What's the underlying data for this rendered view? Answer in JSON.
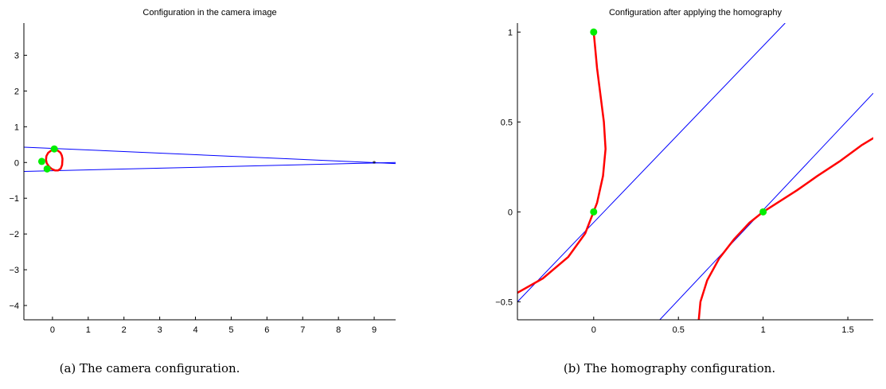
{
  "chart_data": [
    {
      "type": "line",
      "title": "Configuration in the camera image",
      "caption": "(a) The camera configuration.",
      "xlim": [
        -0.8,
        9.6
      ],
      "ylim": [
        -4.4,
        3.9
      ],
      "xticks": [
        0,
        1,
        2,
        3,
        4,
        5,
        6,
        7,
        8,
        9
      ],
      "yticks": [
        -4,
        -3,
        -2,
        -1,
        0,
        1,
        2,
        3
      ],
      "grid": false,
      "series": [
        {
          "kind": "line",
          "color": "#0000ff",
          "x": [
            -0.8,
            9.6
          ],
          "y": [
            0.43,
            -0.03
          ]
        },
        {
          "kind": "line",
          "color": "#0000ff",
          "x": [
            -0.8,
            9.6
          ],
          "y": [
            -0.25,
            0.0
          ]
        },
        {
          "kind": "conic",
          "color": "#ff0000",
          "x": [
            0.28,
            0.26,
            0.22,
            0.15,
            0.06,
            -0.04,
            -0.12,
            -0.17,
            -0.18,
            -0.16,
            -0.1,
            -0.02,
            0.07,
            0.16,
            0.23,
            0.27,
            0.28
          ],
          "y": [
            0.1,
            0.2,
            0.28,
            0.33,
            0.35,
            0.33,
            0.27,
            0.18,
            0.08,
            -0.02,
            -0.11,
            -0.18,
            -0.22,
            -0.22,
            -0.17,
            -0.07,
            0.1
          ]
        },
        {
          "kind": "points",
          "color": "#00ee00",
          "x": [
            0.05,
            -0.3,
            -0.15
          ],
          "y": [
            0.38,
            0.03,
            -0.18
          ]
        },
        {
          "kind": "marker",
          "color": "#000000",
          "symbol": "*",
          "x": [
            9.0
          ],
          "y": [
            0.0
          ]
        }
      ]
    },
    {
      "type": "line",
      "title": "Configuration after applying the homography",
      "caption": "(b) The homography configuration.",
      "xlim": [
        -0.45,
        1.65
      ],
      "ylim": [
        -0.6,
        1.05
      ],
      "xticks": [
        0,
        0.5,
        1,
        1.5
      ],
      "yticks": [
        -0.5,
        0,
        0.5,
        1
      ],
      "grid": false,
      "series": [
        {
          "kind": "line",
          "color": "#0000ff",
          "x": [
            -0.45,
            1.13
          ],
          "y": [
            -0.5,
            1.05
          ]
        },
        {
          "kind": "line",
          "color": "#0000ff",
          "x": [
            0.39,
            1.65
          ],
          "y": [
            -0.6,
            0.66
          ]
        },
        {
          "kind": "conic",
          "color": "#ff0000",
          "x": [
            -0.45,
            -0.3,
            -0.15,
            -0.05,
            0.02,
            0.055,
            0.07,
            0.06,
            0.04,
            0.02,
            0.008,
            0.0
          ],
          "y": [
            -0.45,
            -0.37,
            -0.25,
            -0.12,
            0.05,
            0.2,
            0.35,
            0.5,
            0.65,
            0.8,
            0.92,
            1.0
          ]
        },
        {
          "kind": "conic",
          "color": "#ff0000",
          "x": [
            0.62,
            0.63,
            0.67,
            0.74,
            0.83,
            0.92,
            1.0,
            1.1,
            1.2,
            1.32,
            1.45,
            1.58,
            1.65
          ],
          "y": [
            -0.6,
            -0.5,
            -0.38,
            -0.26,
            -0.15,
            -0.06,
            0.0,
            0.06,
            0.12,
            0.2,
            0.28,
            0.37,
            0.41
          ]
        },
        {
          "kind": "points",
          "color": "#00ee00",
          "x": [
            0.0,
            0.0,
            1.0
          ],
          "y": [
            1.0,
            0.0,
            0.0
          ]
        }
      ]
    }
  ]
}
